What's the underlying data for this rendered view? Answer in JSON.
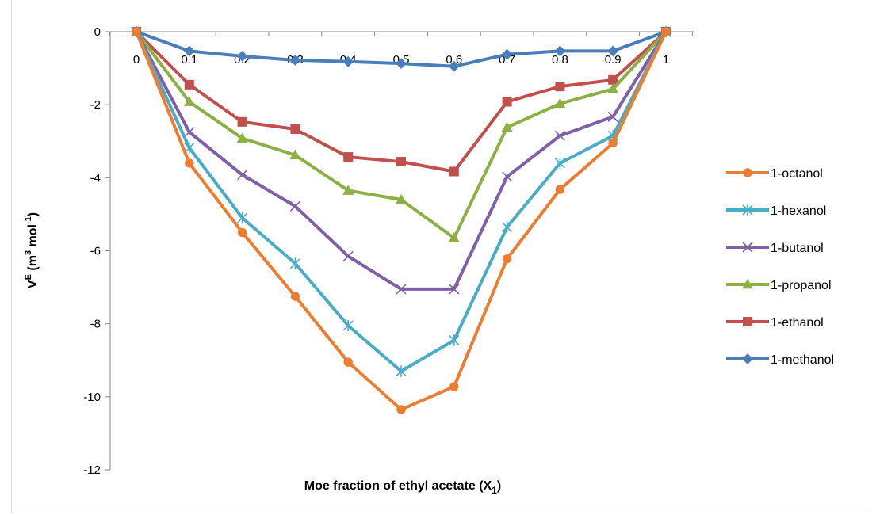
{
  "chart_data": {
    "type": "line",
    "xlabel": "Moe fraction of ethyl acetate (X",
    "xlabel_sub": "1",
    "xlabel_end": ")",
    "ylabel_base": "V",
    "ylabel_sup": "E",
    "ylabel_mid": " (m",
    "ylabel_sup2": "3",
    "ylabel_end": " mol",
    "ylabel_sup3": "-1",
    "ylabel_close": ")",
    "x": [
      0,
      0.1,
      0.2,
      0.3,
      0.4,
      0.5,
      0.6,
      0.7,
      0.8,
      0.9,
      1
    ],
    "x_tick_labels": [
      "0",
      "0.1",
      "0.2",
      "0.3",
      "0.4",
      "0.5",
      "0.6",
      "0.7",
      "0.8",
      "0.9",
      "1"
    ],
    "ylim": [
      -12,
      0
    ],
    "y_ticks": [
      0,
      -2,
      -4,
      -6,
      -8,
      -10,
      -12
    ],
    "y_tick_labels": [
      "0",
      "-2",
      "-4",
      "-6",
      "-8",
      "-10",
      "-12"
    ],
    "grid": false,
    "legend_position": "right",
    "series": [
      {
        "name": "1-octanol",
        "color": "#ED7D31",
        "marker": "circle",
        "values": [
          0,
          -3.6,
          -5.5,
          -7.25,
          -9.05,
          -10.35,
          -9.72,
          -6.22,
          -4.32,
          -3.05,
          0
        ]
      },
      {
        "name": "1-hexanol",
        "color": "#4BACC6",
        "marker": "star",
        "values": [
          0,
          -3.18,
          -5.1,
          -6.35,
          -8.05,
          -9.3,
          -8.45,
          -5.35,
          -3.6,
          -2.85,
          0
        ]
      },
      {
        "name": "1-butanol",
        "color": "#7F5FA8",
        "marker": "x",
        "values": [
          0,
          -2.75,
          -3.92,
          -4.78,
          -6.15,
          -7.05,
          -7.05,
          -3.97,
          -2.85,
          -2.33,
          0
        ]
      },
      {
        "name": "1-propanol",
        "color": "#8BB044",
        "marker": "triangle",
        "values": [
          0,
          -1.92,
          -2.92,
          -3.38,
          -4.35,
          -4.6,
          -5.65,
          -2.62,
          -1.97,
          -1.57,
          0
        ]
      },
      {
        "name": "1-ethanol",
        "color": "#C0504D",
        "marker": "square",
        "values": [
          0,
          -1.45,
          -2.47,
          -2.67,
          -3.43,
          -3.56,
          -3.83,
          -1.92,
          -1.5,
          -1.32,
          0
        ]
      },
      {
        "name": "1-methanol",
        "color": "#4A7EBB",
        "marker": "diamond",
        "values": [
          0,
          -0.53,
          -0.67,
          -0.78,
          -0.82,
          -0.87,
          -0.95,
          -0.62,
          -0.53,
          -0.53,
          0
        ]
      }
    ]
  }
}
